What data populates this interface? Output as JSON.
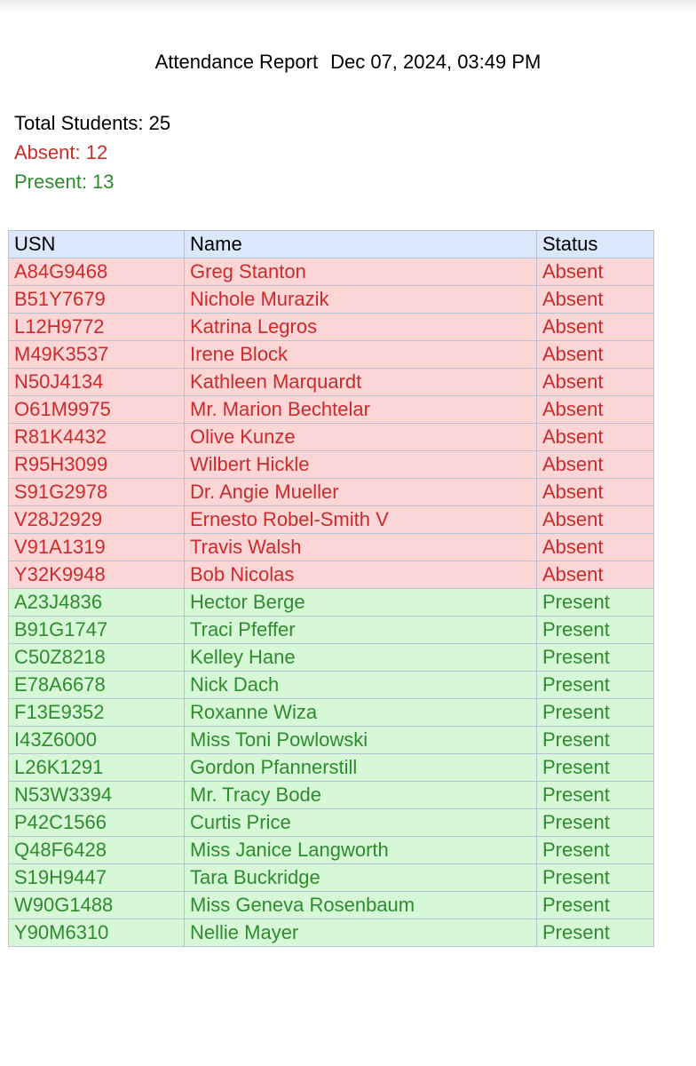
{
  "report": {
    "title": "Attendance Report",
    "datetime": "Dec 07, 2024, 03:49 PM"
  },
  "summary": {
    "total": "Total Students: 25",
    "absent": "Absent: 12",
    "present": "Present: 13"
  },
  "colors": {
    "absent_text": "#cc2b2b",
    "absent_bg": "#fcd6d6",
    "present_text": "#2e8b2e",
    "present_bg": "#d6f8d6",
    "header_bg": "#dbe8fb"
  },
  "table": {
    "headers": [
      "USN",
      "Name",
      "Status"
    ],
    "rows": [
      {
        "usn": "A84G9468",
        "name": "Greg Stanton",
        "status": "Absent"
      },
      {
        "usn": "B51Y7679",
        "name": "Nichole Murazik",
        "status": "Absent"
      },
      {
        "usn": "L12H9772",
        "name": "Katrina Legros",
        "status": "Absent"
      },
      {
        "usn": "M49K3537",
        "name": "Irene Block",
        "status": "Absent"
      },
      {
        "usn": "N50J4134",
        "name": "Kathleen Marquardt",
        "status": "Absent"
      },
      {
        "usn": "O61M9975",
        "name": "Mr. Marion Bechtelar",
        "status": "Absent"
      },
      {
        "usn": "R81K4432",
        "name": "Olive Kunze",
        "status": "Absent"
      },
      {
        "usn": "R95H3099",
        "name": "Wilbert Hickle",
        "status": "Absent"
      },
      {
        "usn": "S91G2978",
        "name": "Dr. Angie Mueller",
        "status": "Absent"
      },
      {
        "usn": "V28J2929",
        "name": "Ernesto Robel-Smith V",
        "status": "Absent"
      },
      {
        "usn": "V91A1319",
        "name": "Travis Walsh",
        "status": "Absent"
      },
      {
        "usn": "Y32K9948",
        "name": "Bob Nicolas",
        "status": "Absent"
      },
      {
        "usn": "A23J4836",
        "name": "Hector Berge",
        "status": "Present"
      },
      {
        "usn": "B91G1747",
        "name": "Traci Pfeffer",
        "status": "Present"
      },
      {
        "usn": "C50Z8218",
        "name": "Kelley Hane",
        "status": "Present"
      },
      {
        "usn": "E78A6678",
        "name": "Nick Dach",
        "status": "Present"
      },
      {
        "usn": "F13E9352",
        "name": "Roxanne Wiza",
        "status": "Present"
      },
      {
        "usn": "I43Z6000",
        "name": "Miss Toni Powlowski",
        "status": "Present"
      },
      {
        "usn": "L26K1291",
        "name": "Gordon Pfannerstill",
        "status": "Present"
      },
      {
        "usn": "N53W3394",
        "name": "Mr. Tracy Bode",
        "status": "Present"
      },
      {
        "usn": "P42C1566",
        "name": "Curtis Price",
        "status": "Present"
      },
      {
        "usn": "Q48F6428",
        "name": "Miss Janice Langworth",
        "status": "Present"
      },
      {
        "usn": "S19H9447",
        "name": "Tara Buckridge",
        "status": "Present"
      },
      {
        "usn": "W90G1488",
        "name": "Miss Geneva Rosenbaum",
        "status": "Present"
      },
      {
        "usn": "Y90M6310",
        "name": "Nellie Mayer",
        "status": "Present"
      }
    ]
  }
}
